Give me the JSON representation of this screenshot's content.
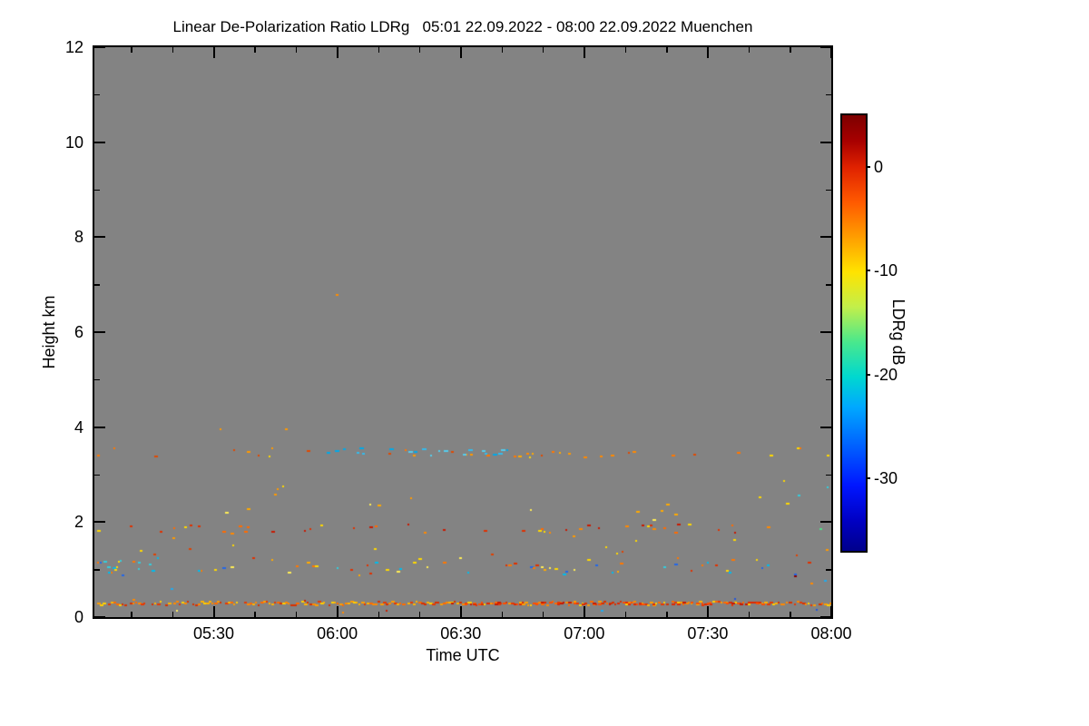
{
  "chart_data": {
    "type": "heatmap",
    "title": "Linear De-Polarization Ratio LDRg   05:01 22.09.2022 - 08:00 22.09.2022 Muenchen",
    "xlabel": "Time UTC",
    "ylabel": "Height km",
    "plot_bg": "#838383",
    "frame_color": "#000000",
    "x_axis": {
      "start": "05:01",
      "end": "08:00",
      "total_minutes": 179,
      "major_ticks": [
        {
          "label": "05:30",
          "minute": 29
        },
        {
          "label": "06:00",
          "minute": 59
        },
        {
          "label": "06:30",
          "minute": 89
        },
        {
          "label": "07:00",
          "minute": 119
        },
        {
          "label": "07:30",
          "minute": 149
        },
        {
          "label": "08:00",
          "minute": 179
        }
      ],
      "minor_tick_minutes": [
        9,
        19,
        39,
        49,
        69,
        79,
        99,
        109,
        129,
        139,
        159,
        169
      ]
    },
    "y_axis": {
      "min": 0,
      "max": 12,
      "major_ticks": [
        0,
        2,
        4,
        6,
        8,
        10,
        12
      ],
      "minor_ticks": [
        1,
        3,
        5,
        7,
        9,
        11
      ]
    },
    "colorbar": {
      "label": "LDRg dB",
      "value_top": 5,
      "value_bottom": -37,
      "ticks": [
        {
          "label": "0",
          "value": 0
        },
        {
          "label": "-10",
          "value": -10
        },
        {
          "label": "-20",
          "value": -20
        },
        {
          "label": "-30",
          "value": -30
        }
      ],
      "gradient_stops": [
        {
          "pos": 0.0,
          "color": "#7d0000"
        },
        {
          "pos": 0.06,
          "color": "#a80000"
        },
        {
          "pos": 0.12,
          "color": "#e02200"
        },
        {
          "pos": 0.2,
          "color": "#ff5a00"
        },
        {
          "pos": 0.28,
          "color": "#ff9e00"
        },
        {
          "pos": 0.36,
          "color": "#ffe300"
        },
        {
          "pos": 0.44,
          "color": "#c2ef4a"
        },
        {
          "pos": 0.52,
          "color": "#4ae88c"
        },
        {
          "pos": 0.6,
          "color": "#00d8cf"
        },
        {
          "pos": 0.67,
          "color": "#00a8ff"
        },
        {
          "pos": 0.76,
          "color": "#0060ff"
        },
        {
          "pos": 0.85,
          "color": "#0016ff"
        },
        {
          "pos": 0.93,
          "color": "#0000c4"
        },
        {
          "pos": 1.0,
          "color": "#00008b"
        }
      ]
    },
    "speckle_layers": [
      {
        "name": "surface-echo-line",
        "t0": 0.0,
        "t1": 1.0,
        "h0": 0.27,
        "h1": 0.34,
        "density": 0.93,
        "step": 3,
        "w": 4,
        "colors": [
          "#ff6a00",
          "#ff8800",
          "#e83800",
          "#ff9e00",
          "#d83000",
          "#ffb300",
          "#ffd000"
        ]
      },
      {
        "name": "surface-line-red-segment",
        "t0": 0.48,
        "t1": 0.92,
        "h0": 0.28,
        "h1": 0.33,
        "density": 0.5,
        "step": 3,
        "w": 4,
        "colors": [
          "#e02800",
          "#ff4d00",
          "#c81800"
        ]
      },
      {
        "name": "near-ground-scatter",
        "t0": 0.0,
        "t1": 1.0,
        "h0": 0.05,
        "h1": 0.93,
        "density": 0.05,
        "step": 3,
        "w": 3,
        "colors": [
          "#ffd400",
          "#ff8800",
          "#c82000",
          "#8b0000",
          "#22aaee",
          "#ffee66",
          "#2255dd"
        ]
      },
      {
        "name": "band-1km",
        "t0": 0.0,
        "t1": 1.0,
        "h0": 0.9,
        "h1": 1.28,
        "density": 0.22,
        "step": 3,
        "w": 4,
        "colors": [
          "#ffd900",
          "#ffaa00",
          "#00bbee",
          "#2266e8",
          "#ff7700",
          "#ffee55",
          "#33ccdd",
          "#e03000"
        ]
      },
      {
        "name": "band-1km-left-blue-cluster",
        "t0": 0.0,
        "t1": 0.06,
        "h0": 0.9,
        "h1": 1.2,
        "density": 0.45,
        "step": 2,
        "w": 4,
        "colors": [
          "#00bbee",
          "#2266e8",
          "#33ccdd",
          "#ffd900"
        ]
      },
      {
        "name": "mid-1p5km-scatter",
        "t0": 0.05,
        "t1": 1.0,
        "h0": 1.32,
        "h1": 1.72,
        "density": 0.06,
        "step": 3,
        "w": 3,
        "colors": [
          "#ff9900",
          "#ffd900",
          "#33bbdd",
          "#e04000"
        ]
      },
      {
        "name": "band-1p9km",
        "t0": 0.0,
        "t1": 1.0,
        "h0": 1.78,
        "h1": 1.98,
        "density": 0.16,
        "step": 3,
        "w": 4,
        "colors": [
          "#ff8800",
          "#e03000",
          "#ffd900",
          "#c81800",
          "#ff6a00"
        ]
      },
      {
        "name": "scatter-2p2km",
        "t0": 0.1,
        "t1": 0.95,
        "h0": 2.05,
        "h1": 2.45,
        "density": 0.05,
        "step": 3,
        "w": 4,
        "colors": [
          "#ffd900",
          "#ffaa00",
          "#ffee55"
        ]
      },
      {
        "name": "scatter-2p7km",
        "t0": 0.1,
        "t1": 1.0,
        "h0": 2.5,
        "h1": 2.9,
        "density": 0.02,
        "step": 3,
        "w": 3,
        "colors": [
          "#ffd900",
          "#ff9900",
          "#33bbdd"
        ]
      },
      {
        "name": "band-3p5km-orange",
        "t0": 0.0,
        "t1": 1.0,
        "h0": 3.35,
        "h1": 3.58,
        "density": 0.12,
        "step": 3,
        "w": 4,
        "colors": [
          "#ff9900",
          "#ff7700",
          "#ffd900",
          "#e04800"
        ]
      },
      {
        "name": "band-3p5km-cyan-cluster",
        "t0": 0.3,
        "t1": 0.56,
        "h0": 3.42,
        "h1": 3.58,
        "density": 0.3,
        "step": 3,
        "w": 5,
        "colors": [
          "#33bbee",
          "#00a8e8",
          "#55ccee"
        ]
      },
      {
        "name": "band-3p5km-orange-cluster",
        "t0": 0.56,
        "t1": 0.75,
        "h0": 3.38,
        "h1": 3.55,
        "density": 0.25,
        "step": 3,
        "w": 4,
        "colors": [
          "#ffaa00",
          "#ff8800",
          "#ffd900"
        ]
      },
      {
        "name": "scatter-4km",
        "t0": 0.0,
        "t1": 1.0,
        "h0": 3.95,
        "h1": 4.2,
        "density": 0.012,
        "step": 3,
        "w": 3,
        "colors": [
          "#ff9900",
          "#ffd900"
        ]
      },
      {
        "name": "right-edge-cluster",
        "t0": 0.93,
        "t1": 1.0,
        "h0": 1.7,
        "h1": 2.9,
        "density": 0.1,
        "step": 2,
        "w": 3,
        "colors": [
          "#33ccdd",
          "#55dd88",
          "#ff9900",
          "#00bbee",
          "#ffd900"
        ]
      }
    ],
    "isolated_points": [
      {
        "t": 0.327,
        "h": 6.8,
        "color": "#ff8c00",
        "w": 3
      }
    ]
  }
}
